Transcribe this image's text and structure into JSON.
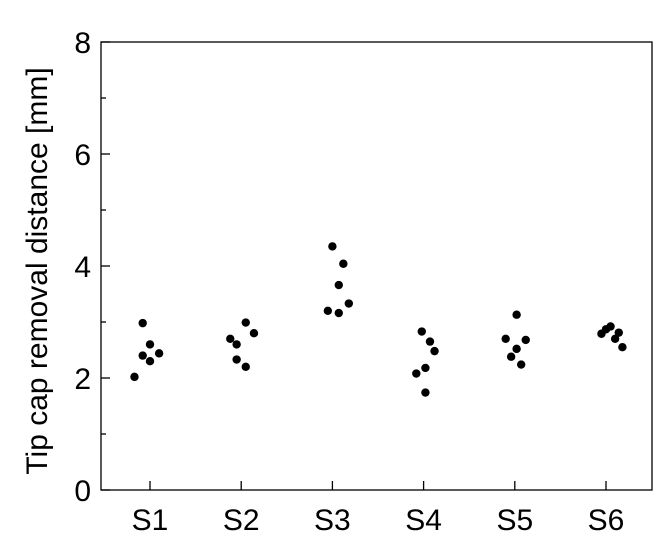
{
  "chart_data": {
    "type": "scatter",
    "ylabel": "Tip cap removal distance [mm]",
    "xlabel": "",
    "categories": [
      "S1",
      "S2",
      "S3",
      "S4",
      "S5",
      "S6"
    ],
    "ylim": [
      0,
      8
    ],
    "yticks": [
      0,
      2,
      4,
      6,
      8
    ],
    "yminor_ticks": [
      1,
      3,
      5,
      7
    ],
    "grid": false,
    "legend": "none",
    "point_color": "#000000",
    "series": [
      {
        "points": [
          {
            "category": "S1",
            "offset": -0.17,
            "y": 2.02
          },
          {
            "category": "S1",
            "offset": -0.08,
            "y": 2.98
          },
          {
            "category": "S1",
            "offset": -0.08,
            "y": 2.4
          },
          {
            "category": "S1",
            "offset": 0.0,
            "y": 2.6
          },
          {
            "category": "S1",
            "offset": 0.0,
            "y": 2.3
          },
          {
            "category": "S1",
            "offset": 0.1,
            "y": 2.44
          },
          {
            "category": "S2",
            "offset": -0.12,
            "y": 2.7
          },
          {
            "category": "S2",
            "offset": -0.05,
            "y": 2.6
          },
          {
            "category": "S2",
            "offset": -0.05,
            "y": 2.33
          },
          {
            "category": "S2",
            "offset": 0.05,
            "y": 2.99
          },
          {
            "category": "S2",
            "offset": 0.05,
            "y": 2.2
          },
          {
            "category": "S2",
            "offset": 0.14,
            "y": 2.8
          },
          {
            "category": "S3",
            "offset": -0.05,
            "y": 3.2
          },
          {
            "category": "S3",
            "offset": 0.0,
            "y": 4.35
          },
          {
            "category": "S3",
            "offset": 0.07,
            "y": 3.16
          },
          {
            "category": "S3",
            "offset": 0.07,
            "y": 3.66
          },
          {
            "category": "S3",
            "offset": 0.12,
            "y": 4.04
          },
          {
            "category": "S3",
            "offset": 0.18,
            "y": 3.33
          },
          {
            "category": "S4",
            "offset": -0.08,
            "y": 2.08
          },
          {
            "category": "S4",
            "offset": -0.02,
            "y": 2.83
          },
          {
            "category": "S4",
            "offset": 0.02,
            "y": 2.18
          },
          {
            "category": "S4",
            "offset": 0.02,
            "y": 1.74
          },
          {
            "category": "S4",
            "offset": 0.07,
            "y": 2.65
          },
          {
            "category": "S4",
            "offset": 0.12,
            "y": 2.48
          },
          {
            "category": "S5",
            "offset": -0.1,
            "y": 2.7
          },
          {
            "category": "S5",
            "offset": -0.04,
            "y": 2.38
          },
          {
            "category": "S5",
            "offset": 0.02,
            "y": 3.13
          },
          {
            "category": "S5",
            "offset": 0.02,
            "y": 2.52
          },
          {
            "category": "S5",
            "offset": 0.07,
            "y": 2.24
          },
          {
            "category": "S5",
            "offset": 0.12,
            "y": 2.68
          },
          {
            "category": "S6",
            "offset": -0.05,
            "y": 2.79
          },
          {
            "category": "S6",
            "offset": 0.0,
            "y": 2.87
          },
          {
            "category": "S6",
            "offset": 0.05,
            "y": 2.92
          },
          {
            "category": "S6",
            "offset": 0.1,
            "y": 2.7
          },
          {
            "category": "S6",
            "offset": 0.14,
            "y": 2.81
          },
          {
            "category": "S6",
            "offset": 0.18,
            "y": 2.55
          }
        ]
      }
    ]
  }
}
